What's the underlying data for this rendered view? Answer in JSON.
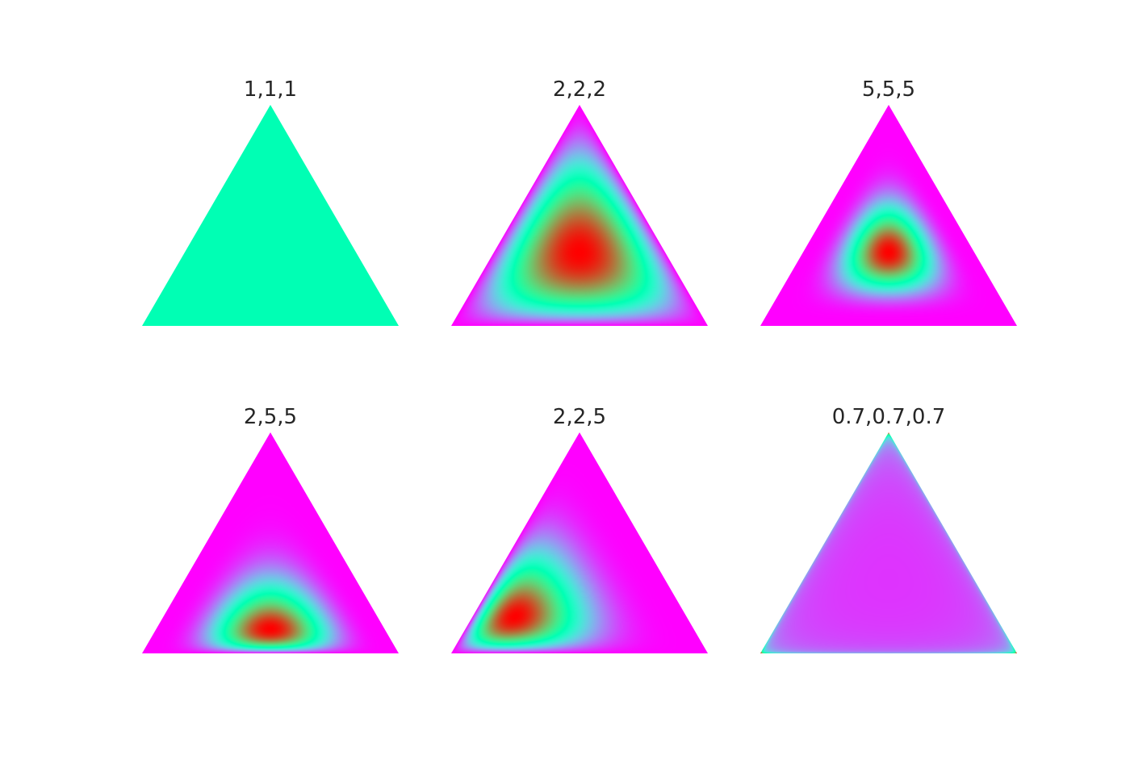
{
  "chart_data": [
    {
      "type": "heatmap",
      "title": "1,1,1",
      "alpha": [
        1,
        1,
        1
      ],
      "colormap": "rainbow",
      "corners": [
        "top",
        "bottom-right",
        "bottom-left"
      ]
    },
    {
      "type": "heatmap",
      "title": "2,2,2",
      "alpha": [
        2,
        2,
        2
      ],
      "colormap": "rainbow",
      "corners": [
        "top",
        "bottom-right",
        "bottom-left"
      ]
    },
    {
      "type": "heatmap",
      "title": "5,5,5",
      "alpha": [
        5,
        5,
        5
      ],
      "colormap": "rainbow",
      "corners": [
        "top",
        "bottom-right",
        "bottom-left"
      ]
    },
    {
      "type": "heatmap",
      "title": "2,5,5",
      "alpha": [
        2,
        5,
        5
      ],
      "colormap": "rainbow",
      "corners": [
        "top",
        "bottom-right",
        "bottom-left"
      ]
    },
    {
      "type": "heatmap",
      "title": "2,2,5",
      "alpha": [
        2,
        2,
        5
      ],
      "colormap": "rainbow",
      "corners": [
        "top",
        "bottom-right",
        "bottom-left"
      ]
    },
    {
      "type": "heatmap",
      "title": "0.7,0.7,0.7",
      "alpha": [
        0.7,
        0.7,
        0.7
      ],
      "colormap": "rainbow",
      "corners": [
        "top",
        "bottom-right",
        "bottom-left"
      ]
    }
  ]
}
